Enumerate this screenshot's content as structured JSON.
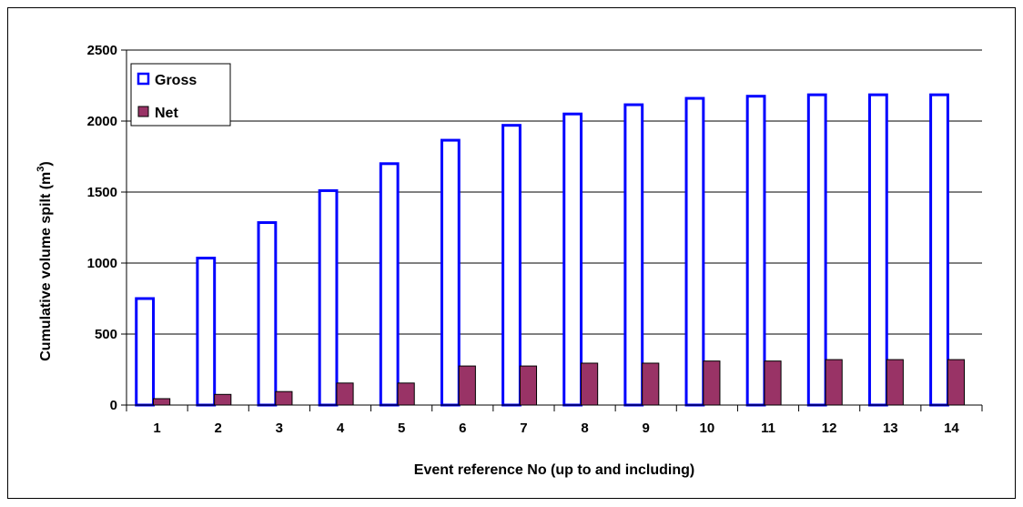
{
  "chart_data": {
    "type": "bar",
    "title": "",
    "xlabel": "Event reference No (up to and including)",
    "ylabel": "Cumulative volume spilt (m",
    "ylabel_superscript": "3",
    "ylabel_suffix": ")",
    "categories": [
      "1",
      "2",
      "3",
      "4",
      "5",
      "6",
      "7",
      "8",
      "9",
      "10",
      "11",
      "12",
      "13",
      "14"
    ],
    "ylim": [
      0,
      2500
    ],
    "yticks": [
      "0",
      "500",
      "1000",
      "1500",
      "2000",
      "2500"
    ],
    "grid": true,
    "legend_position": "top-left",
    "series": [
      {
        "name": "Gross",
        "color": "#0000ff",
        "fill": "#ffffff",
        "values": [
          750,
          1035,
          1285,
          1510,
          1700,
          1865,
          1970,
          2050,
          2115,
          2160,
          2175,
          2185,
          2185,
          2185
        ]
      },
      {
        "name": "Net",
        "color": "#993366",
        "fill": "#993366",
        "values": [
          45,
          75,
          95,
          155,
          155,
          275,
          275,
          295,
          295,
          310,
          310,
          320,
          320,
          320
        ]
      }
    ]
  }
}
